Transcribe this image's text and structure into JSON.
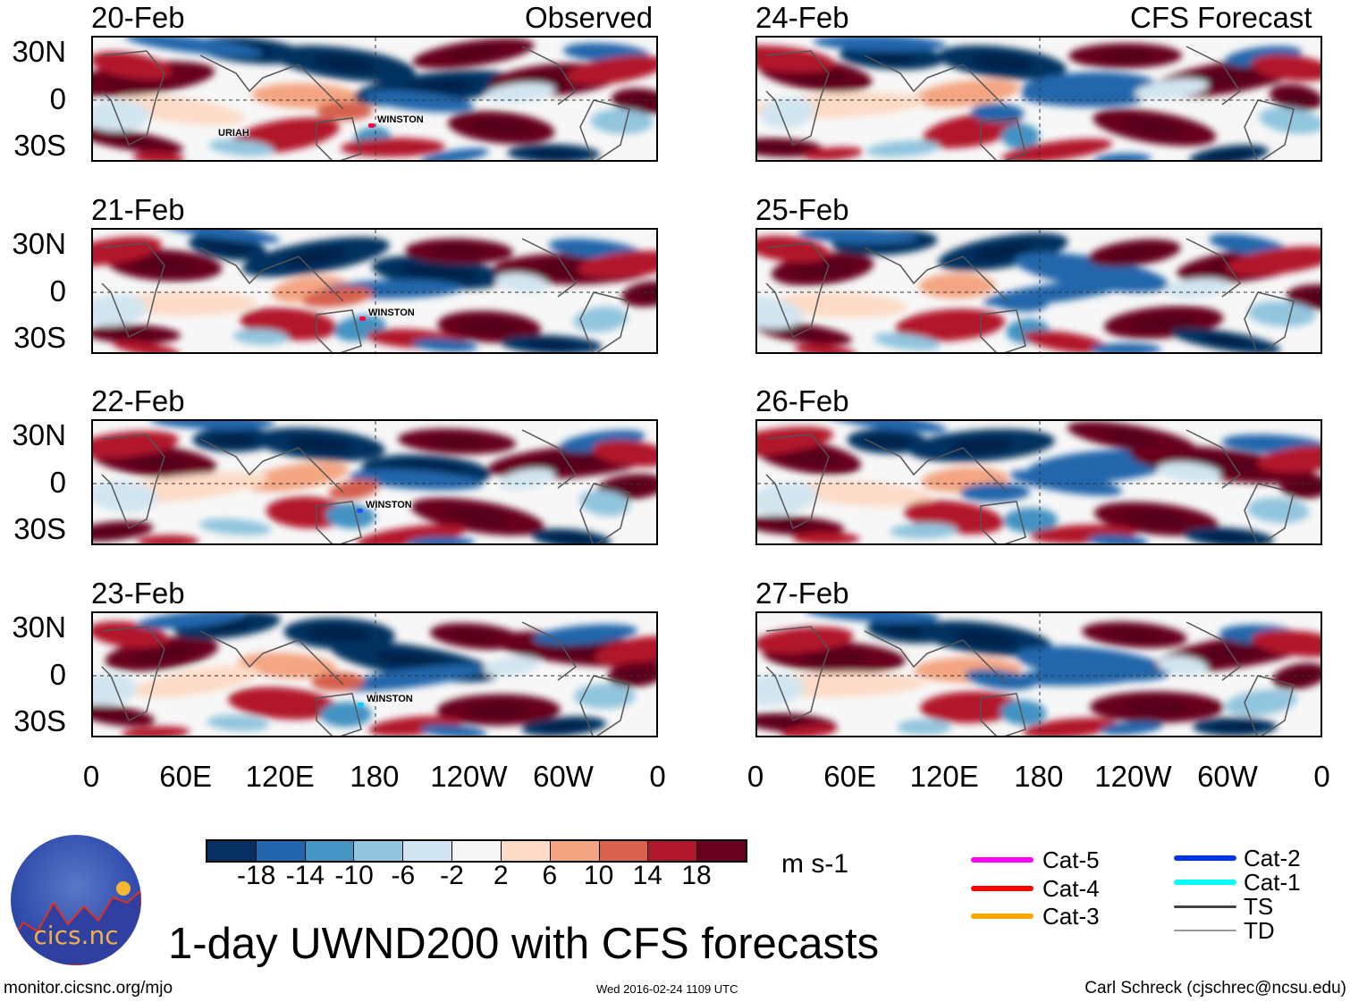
{
  "title": "1-day UWND200 with CFS forecasts",
  "observed_label": "Observed",
  "forecast_label": "CFS Forecast",
  "panels": {
    "observed": [
      {
        "date": "20-Feb",
        "storms": [
          "WINSTON",
          "URIAH"
        ]
      },
      {
        "date": "21-Feb",
        "storms": [
          "WINSTON"
        ]
      },
      {
        "date": "22-Feb",
        "storms": [
          "WINSTON"
        ]
      },
      {
        "date": "23-Feb",
        "storms": [
          "WINSTON"
        ]
      }
    ],
    "forecast": [
      {
        "date": "24-Feb"
      },
      {
        "date": "25-Feb"
      },
      {
        "date": "26-Feb"
      },
      {
        "date": "27-Feb"
      }
    ]
  },
  "lat_labels": [
    "30N",
    "0",
    "30S"
  ],
  "lon_labels": [
    "0",
    "60E",
    "120E",
    "180",
    "120W",
    "60W",
    "0"
  ],
  "colorbar": {
    "colors": [
      "#053061",
      "#2166ac",
      "#4393c3",
      "#92c5de",
      "#d1e5f0",
      "#f7f7f7",
      "#fddbc7",
      "#f4a582",
      "#d6604d",
      "#b2182b",
      "#67001f"
    ],
    "labels": [
      "-18",
      "-14",
      "-10",
      "-6",
      "-2",
      "2",
      "6",
      "10",
      "14",
      "18"
    ],
    "units": "m s-1"
  },
  "legend": [
    {
      "label": "Cat-5",
      "color": "#ff00ff"
    },
    {
      "label": "Cat-4",
      "color": "#ff0000"
    },
    {
      "label": "Cat-3",
      "color": "#ffa500"
    },
    {
      "label": "Cat-2",
      "color": "#0033ee"
    },
    {
      "label": "Cat-1",
      "color": "#00ffff"
    },
    {
      "label": "TS",
      "color": "#444444"
    },
    {
      "label": "TD",
      "color": "#999999"
    }
  ],
  "logo_text": "cics.nc",
  "logo_ring_text": "Cooperative Institute for Climate and Satellites",
  "footer": {
    "url": "monitor.cicsnc.org/mjo",
    "timestamp": "Wed 2016-02-24 1109 UTC",
    "author": "Carl Schreck (cjschrec@ncsu.edu)"
  }
}
